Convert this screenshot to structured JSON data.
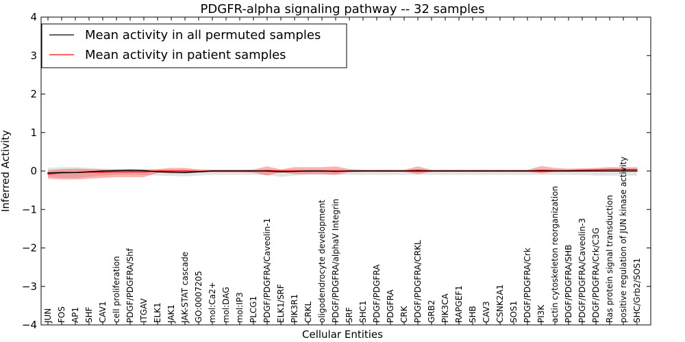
{
  "chart_data": {
    "type": "line",
    "title": "PDGFR-alpha signaling pathway -- 32 samples",
    "xlabel": "Cellular Entities",
    "ylabel": "Inferred Activity",
    "ylim": [
      -4,
      4
    ],
    "yticks": [
      4,
      3,
      2,
      1,
      0,
      -1,
      -2,
      -3,
      -4
    ],
    "ytick_labels": [
      "4",
      "3",
      "2",
      "1",
      "0",
      "−1",
      "−2",
      "−3",
      "−4"
    ],
    "legend_position": "top-left",
    "categories": [
      "JUN",
      "FOS",
      "AP1",
      "SHF",
      "CAV1",
      "cell proliferation",
      "PDGF/PDGFRA/Shf",
      "ITGAV",
      "ELK1",
      "JAK1",
      "JAK-STAT cascade",
      "GO:0007205",
      "mol:Ca2+",
      "mol:DAG",
      "mol:IP3",
      "PLCG1",
      "PDGF/PDGFRA/Caveolin-1",
      "ELK1/SRF",
      "PIK3R1",
      "CRKL",
      "oligodendrocyte development",
      "PDGF/PDGFRA/alphaV Integrin",
      "SRF",
      "SHC1",
      "PDGF/PDGFRA",
      "PDGFRA",
      "CRK",
      "PDGF/PDGFRA/CRKL",
      "GRB2",
      "PIK3CA",
      "RAPGEF1",
      "SHB",
      "CAV3",
      "CSNK2A1",
      "SOS1",
      "PDGF/PDGFRA/Crk",
      "PI3K",
      "actin cytoskeleton reorganization",
      "PDGF/PDGFRA/SHB",
      "PDGF/PDGFRA/Caveolin-3",
      "PDGF/PDGFRA/Crk/C3G",
      "Ras protein signal transduction",
      "positive regulation of JUN kinase activity",
      "SHC/Grb2/SOS1"
    ],
    "series": [
      {
        "name": "Mean activity in all permuted samples",
        "color": "#000000",
        "values": [
          -0.05,
          -0.04,
          -0.04,
          -0.02,
          0.0,
          0.01,
          0.02,
          0.01,
          -0.02,
          -0.03,
          -0.04,
          -0.02,
          0.0,
          0.0,
          0.0,
          0.0,
          0.0,
          -0.02,
          -0.01,
          0.0,
          0.0,
          -0.01,
          0.0,
          0.0,
          0.0,
          0.0,
          0.0,
          0.0,
          0.0,
          0.0,
          0.0,
          0.0,
          0.0,
          0.0,
          0.0,
          0.0,
          0.0,
          0.0,
          0.0,
          0.0,
          0.0,
          0.0,
          0.0,
          0.0
        ],
        "band_upper": [
          0.08,
          0.1,
          0.1,
          0.08,
          0.06,
          0.05,
          0.05,
          0.05,
          0.04,
          0.04,
          0.04,
          0.04,
          0.04,
          0.04,
          0.04,
          0.04,
          0.04,
          0.04,
          0.04,
          0.04,
          0.04,
          0.04,
          0.04,
          0.04,
          0.04,
          0.04,
          0.04,
          0.04,
          0.04,
          0.04,
          0.04,
          0.04,
          0.04,
          0.04,
          0.04,
          0.04,
          0.04,
          0.04,
          0.04,
          0.04,
          0.04,
          0.04,
          0.04,
          0.04
        ],
        "band_lower": [
          -0.15,
          -0.18,
          -0.18,
          -0.15,
          -0.12,
          -0.1,
          -0.1,
          -0.1,
          -0.12,
          -0.13,
          -0.14,
          -0.12,
          -0.1,
          -0.1,
          -0.1,
          -0.1,
          -0.1,
          -0.15,
          -0.12,
          -0.1,
          -0.1,
          -0.1,
          -0.1,
          -0.1,
          -0.1,
          -0.1,
          -0.1,
          -0.1,
          -0.1,
          -0.1,
          -0.1,
          -0.1,
          -0.1,
          -0.1,
          -0.1,
          -0.1,
          -0.1,
          -0.1,
          -0.1,
          -0.1,
          -0.12,
          -0.12,
          -0.12,
          -0.12
        ]
      },
      {
        "name": "Mean activity in patient samples",
        "color": "#ff0000",
        "values": [
          -0.08,
          -0.05,
          -0.04,
          -0.03,
          -0.03,
          -0.02,
          -0.02,
          -0.02,
          0.0,
          0.0,
          0.0,
          -0.01,
          0.0,
          0.0,
          0.0,
          0.0,
          0.01,
          0.0,
          0.0,
          0.0,
          0.0,
          0.0,
          0.0,
          0.0,
          0.0,
          0.0,
          0.0,
          0.02,
          0.0,
          0.0,
          0.0,
          0.0,
          0.0,
          0.0,
          0.0,
          0.0,
          0.02,
          0.01,
          0.01,
          0.02,
          0.03,
          0.04,
          0.04,
          0.04
        ],
        "band_upper": [
          0.02,
          0.05,
          0.06,
          0.05,
          0.04,
          0.04,
          0.04,
          0.04,
          0.05,
          0.08,
          0.08,
          0.04,
          0.03,
          0.03,
          0.03,
          0.04,
          0.12,
          0.04,
          0.1,
          0.1,
          0.1,
          0.12,
          0.05,
          0.03,
          0.03,
          0.03,
          0.03,
          0.12,
          0.03,
          0.03,
          0.03,
          0.03,
          0.03,
          0.03,
          0.03,
          0.03,
          0.13,
          0.08,
          0.06,
          0.07,
          0.08,
          0.1,
          0.1,
          0.1
        ],
        "band_lower": [
          -0.2,
          -0.22,
          -0.22,
          -0.2,
          -0.18,
          -0.16,
          -0.16,
          -0.16,
          -0.05,
          -0.06,
          -0.06,
          -0.04,
          -0.03,
          -0.03,
          -0.03,
          -0.04,
          -0.12,
          -0.03,
          -0.08,
          -0.08,
          -0.08,
          -0.1,
          -0.03,
          -0.02,
          -0.02,
          -0.02,
          -0.02,
          -0.08,
          -0.02,
          -0.02,
          -0.02,
          -0.02,
          -0.02,
          -0.02,
          -0.02,
          -0.02,
          -0.06,
          -0.02,
          -0.02,
          -0.01,
          0.0,
          0.0,
          0.0,
          0.0
        ]
      }
    ]
  }
}
